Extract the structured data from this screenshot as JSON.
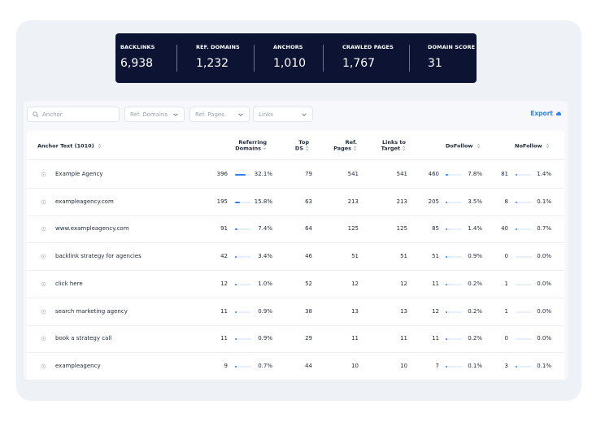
{
  "stats": [
    {
      "label": "BACKLINKS",
      "value": "6,938"
    },
    {
      "label": "REF. DOMAINS",
      "value": "1,232"
    },
    {
      "label": "ANCHORS",
      "value": "1,010"
    },
    {
      "label": "CRAWLED PAGES",
      "value": "1,767"
    },
    {
      "label": "DOMAIN SCORE",
      "value": "31"
    }
  ],
  "filters": {
    "search_placeholder": "Anchor",
    "ref_domains": "Ref. Domains",
    "ref_pages": "Ref. Pages",
    "links": "Links"
  },
  "export_label": "Export",
  "columns": {
    "anchor": "Anchor Text (1010)",
    "referring_domains_1": "Referring",
    "referring_domains_2": "Domains",
    "top_ds_1": "Top",
    "top_ds_2": "DS",
    "ref_pages_1": "Ref.",
    "ref_pages_2": "Pages",
    "links_to_target_1": "Links to",
    "links_to_target_2": "Target",
    "dofollow": "DoFollow",
    "nofollow": "NoFollow"
  },
  "rows": [
    {
      "anchor": "Example Agency",
      "ref_domains": "396",
      "ref_domains_pct": "32.1%",
      "ref_domains_frac": 0.321,
      "top_ds": "79",
      "ref_pages": "541",
      "links": "541",
      "dofollow": "460",
      "dofollow_pct": "7.8%",
      "dofollow_frac": 0.078,
      "nofollow": "81",
      "nofollow_pct": "1.4%",
      "nofollow_frac": 0.014
    },
    {
      "anchor": "exampleagency.com",
      "ref_domains": "195",
      "ref_domains_pct": "15.8%",
      "ref_domains_frac": 0.158,
      "top_ds": "63",
      "ref_pages": "213",
      "links": "213",
      "dofollow": "205",
      "dofollow_pct": "3.5%",
      "dofollow_frac": 0.035,
      "nofollow": "8",
      "nofollow_pct": "0.1%",
      "nofollow_frac": 0.001
    },
    {
      "anchor": "www.exampleagency.com",
      "ref_domains": "91",
      "ref_domains_pct": "7.4%",
      "ref_domains_frac": 0.074,
      "top_ds": "64",
      "ref_pages": "125",
      "links": "125",
      "dofollow": "85",
      "dofollow_pct": "1.4%",
      "dofollow_frac": 0.014,
      "nofollow": "40",
      "nofollow_pct": "0.7%",
      "nofollow_frac": 0.007
    },
    {
      "anchor": "backlink strategy for agencies",
      "ref_domains": "42",
      "ref_domains_pct": "3.4%",
      "ref_domains_frac": 0.034,
      "top_ds": "46",
      "ref_pages": "51",
      "links": "51",
      "dofollow": "51",
      "dofollow_pct": "0.9%",
      "dofollow_frac": 0.009,
      "nofollow": "0",
      "nofollow_pct": "0.0%",
      "nofollow_frac": 0.0
    },
    {
      "anchor": "click here",
      "ref_domains": "12",
      "ref_domains_pct": "1.0%",
      "ref_domains_frac": 0.01,
      "top_ds": "52",
      "ref_pages": "12",
      "links": "12",
      "dofollow": "11",
      "dofollow_pct": "0.2%",
      "dofollow_frac": 0.002,
      "nofollow": "1",
      "nofollow_pct": "0.0%",
      "nofollow_frac": 0.0
    },
    {
      "anchor": "search marketing agency",
      "ref_domains": "11",
      "ref_domains_pct": "0.9%",
      "ref_domains_frac": 0.009,
      "top_ds": "38",
      "ref_pages": "13",
      "links": "13",
      "dofollow": "12",
      "dofollow_pct": "0.2%",
      "dofollow_frac": 0.002,
      "nofollow": "1",
      "nofollow_pct": "0.0%",
      "nofollow_frac": 0.0
    },
    {
      "anchor": "book a strategy call",
      "ref_domains": "11",
      "ref_domains_pct": "0.9%",
      "ref_domains_frac": 0.009,
      "top_ds": "29",
      "ref_pages": "11",
      "links": "11",
      "dofollow": "11",
      "dofollow_pct": "0.2%",
      "dofollow_frac": 0.002,
      "nofollow": "0",
      "nofollow_pct": "0.0%",
      "nofollow_frac": 0.0
    },
    {
      "anchor": "exampleagency",
      "ref_domains": "9",
      "ref_domains_pct": "0.7%",
      "ref_domains_frac": 0.007,
      "top_ds": "44",
      "ref_pages": "10",
      "links": "10",
      "dofollow": "7",
      "dofollow_pct": "0.1%",
      "dofollow_frac": 0.001,
      "nofollow": "3",
      "nofollow_pct": "0.1%",
      "nofollow_frac": 0.001
    }
  ],
  "colors": {
    "accent": "#2f80ed",
    "navy": "#0d1433"
  }
}
